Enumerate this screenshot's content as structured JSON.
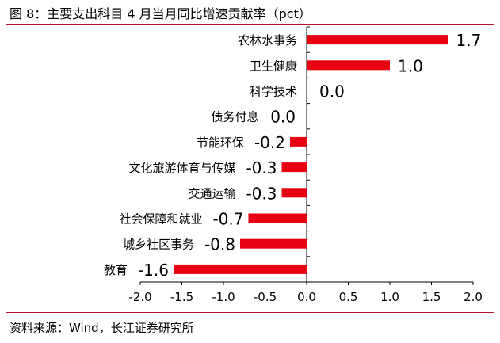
{
  "figure": {
    "title": "图 8：主要支出科目 4 月当月同比增速贡献率（pct）",
    "source": "资料来源：Wind，长江证券研究所"
  },
  "chart_data": {
    "type": "bar",
    "orientation": "horizontal",
    "categories": [
      "农林水事务",
      "卫生健康",
      "科学技术",
      "债务付息",
      "节能环保",
      "文化旅游体育与传媒",
      "交通运输",
      "社会保障和就业",
      "城乡社区事务",
      "教育"
    ],
    "values": [
      1.7,
      1.0,
      0.0,
      0.0,
      -0.2,
      -0.3,
      -0.3,
      -0.7,
      -0.8,
      -1.6
    ],
    "value_labels": [
      "1.7",
      "1.0",
      "0.0",
      "0.0",
      "-0.2",
      "-0.3",
      "-0.3",
      "-0.7",
      "-0.8",
      "-1.6"
    ],
    "xlim": [
      -2.0,
      2.0
    ],
    "x_ticks": [
      "-2.0",
      "-1.5",
      "-1.0",
      "-0.5",
      "0.0",
      "0.5",
      "1.0",
      "1.5",
      "2.0"
    ],
    "bar_color": "#e60012",
    "grid": false,
    "legend": "none"
  }
}
